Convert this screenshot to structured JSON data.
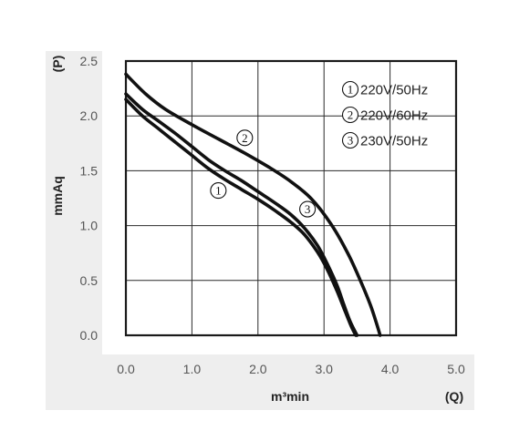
{
  "chart_data": {
    "type": "line",
    "xlabel": "m³min",
    "xunit": "(Q)",
    "ylabel": "mmAq",
    "yunit": "(P)",
    "xlim": [
      0,
      5
    ],
    "ylim": [
      0,
      2.5
    ],
    "x_ticks": [
      "0.0",
      "1.0",
      "2.0",
      "3.0",
      "4.0",
      "5.0"
    ],
    "y_ticks": [
      "0.0",
      "0.5",
      "1.0",
      "1.5",
      "2.0",
      "2.5"
    ],
    "grid": true,
    "legend_position": "top-right",
    "legend": [
      {
        "marker": "1",
        "label": "220V/50Hz"
      },
      {
        "marker": "2",
        "label": "220V/60Hz"
      },
      {
        "marker": "3",
        "label": "230V/50Hz"
      }
    ],
    "series": [
      {
        "marker": "1",
        "x": [
          0.0,
          0.25,
          0.5,
          0.75,
          1.0,
          1.25,
          1.5,
          1.75,
          2.0,
          2.25,
          2.5,
          2.7,
          2.9,
          3.05,
          3.2,
          3.3,
          3.4,
          3.48
        ],
        "y": [
          2.15,
          2.0,
          1.88,
          1.76,
          1.64,
          1.52,
          1.42,
          1.33,
          1.24,
          1.14,
          1.03,
          0.92,
          0.76,
          0.6,
          0.4,
          0.25,
          0.1,
          0.0
        ],
        "label_at": [
          1.4,
          1.32
        ]
      },
      {
        "marker": "2",
        "x": [
          0.0,
          0.3,
          0.6,
          1.0,
          1.4,
          1.8,
          2.2,
          2.5,
          2.8,
          3.1,
          3.35,
          3.55,
          3.7,
          3.8,
          3.85
        ],
        "y": [
          2.38,
          2.2,
          2.06,
          1.92,
          1.79,
          1.66,
          1.52,
          1.4,
          1.25,
          1.02,
          0.76,
          0.5,
          0.28,
          0.1,
          0.0
        ],
        "label_at": [
          1.8,
          1.8
        ]
      },
      {
        "marker": "3",
        "x": [
          0.0,
          0.25,
          0.5,
          0.75,
          1.0,
          1.25,
          1.5,
          1.75,
          2.0,
          2.25,
          2.5,
          2.7,
          2.9,
          3.05,
          3.2,
          3.3,
          3.4,
          3.5
        ],
        "y": [
          2.2,
          2.06,
          1.95,
          1.84,
          1.72,
          1.6,
          1.5,
          1.41,
          1.31,
          1.21,
          1.1,
          0.98,
          0.82,
          0.65,
          0.45,
          0.28,
          0.12,
          0.0
        ],
        "label_at": [
          2.75,
          1.15
        ]
      }
    ]
  }
}
